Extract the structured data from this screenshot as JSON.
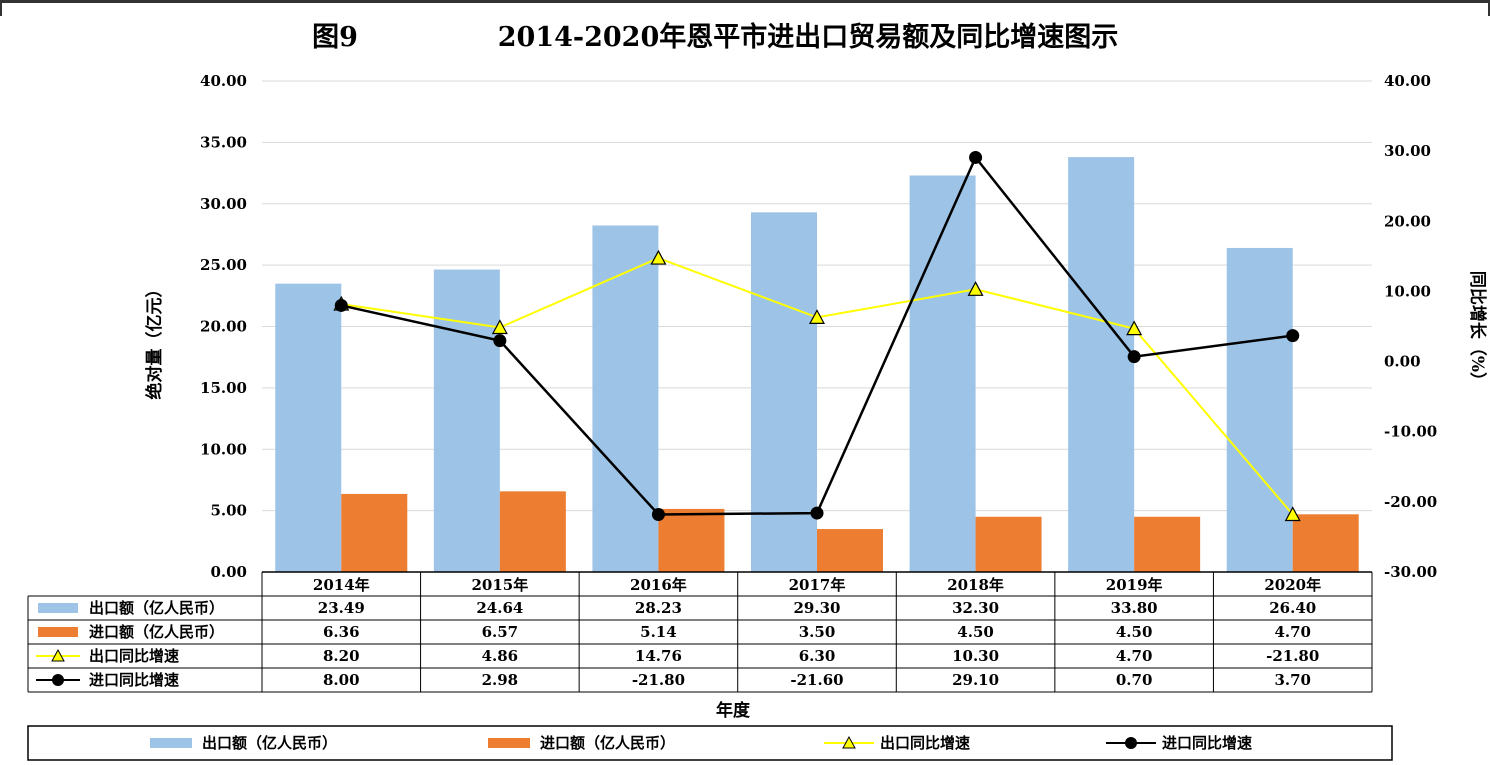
{
  "chart_data": {
    "type": "bar",
    "title_prefix": "图9",
    "title": "2014-2020年恩平市进出口贸易额及同比增速图示",
    "categories": [
      "2014年",
      "2015年",
      "2016年",
      "2017年",
      "2018年",
      "2019年",
      "2020年"
    ],
    "xlabel": "年度",
    "ylabel": "绝对量（亿元）",
    "y2label": "同比增长（%）",
    "ylim": [
      0,
      40
    ],
    "y2lim": [
      -30,
      40
    ],
    "y_ticks": [
      "0.00",
      "5.00",
      "10.00",
      "15.00",
      "20.00",
      "25.00",
      "30.00",
      "35.00",
      "40.00"
    ],
    "y2_ticks": [
      "-30.00",
      "-20.00",
      "-10.00",
      "0.00",
      "10.00",
      "20.00",
      "30.00",
      "40.00"
    ],
    "grid": true,
    "legend_position": "bottom",
    "series": [
      {
        "name": "出口额（亿人民币）",
        "kind": "bar",
        "axis": "left",
        "color": "#9DC3E6",
        "values": [
          23.49,
          24.64,
          28.23,
          29.3,
          32.3,
          33.8,
          26.4
        ],
        "labels": [
          "23.49",
          "24.64",
          "28.23",
          "29.30",
          "32.30",
          "33.80",
          "26.40"
        ]
      },
      {
        "name": "进口额（亿人民币）",
        "kind": "bar",
        "axis": "left",
        "color": "#ED7D31",
        "values": [
          6.36,
          6.57,
          5.14,
          3.5,
          4.5,
          4.5,
          4.7
        ],
        "labels": [
          "6.36",
          "6.57",
          "5.14",
          "3.50",
          "4.50",
          "4.50",
          "4.70"
        ]
      },
      {
        "name": "出口同比增速",
        "kind": "line",
        "axis": "right",
        "color": "#FFFF00",
        "marker": "triangle",
        "values": [
          8.2,
          4.86,
          14.76,
          6.3,
          10.3,
          4.7,
          -21.8
        ],
        "labels": [
          "8.20",
          "4.86",
          "14.76",
          "6.30",
          "10.30",
          "4.70",
          "-21.80"
        ]
      },
      {
        "name": "进口同比增速",
        "kind": "line",
        "axis": "right",
        "color": "#000000",
        "marker": "circle",
        "values": [
          8.0,
          2.98,
          -21.8,
          -21.6,
          29.1,
          0.7,
          3.7
        ],
        "labels": [
          "8.00",
          "2.98",
          "-21.80",
          "-21.60",
          "29.10",
          "0.70",
          "3.70"
        ]
      }
    ]
  }
}
